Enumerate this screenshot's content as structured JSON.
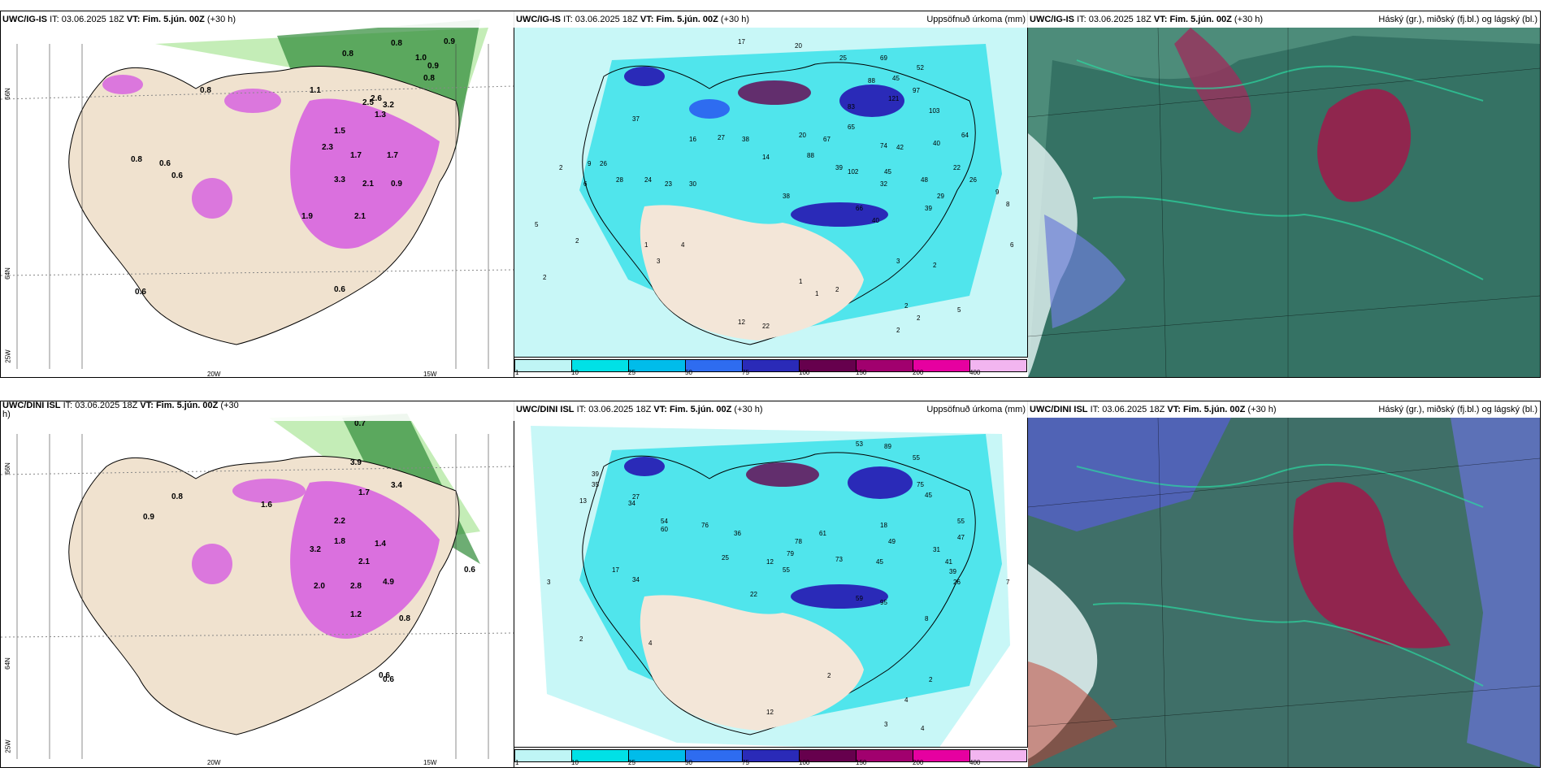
{
  "panels": [
    {
      "title_model": "UWC/IG-IS",
      "title_it_label": "IT:",
      "title_it": "03.06.2025 18Z",
      "title_vt_label": "VT:",
      "title_vt": "Fim. 5.jún. 00Z",
      "title_lead": "(+30 h)",
      "title_right": ""
    },
    {
      "title_model": "UWC/IG-IS",
      "title_it_label": "IT:",
      "title_it": "03.06.2025 18Z",
      "title_vt_label": "VT:",
      "title_vt": "Fim. 5.jún. 00Z",
      "title_lead": "(+30 h)",
      "title_right": "Uppsöfnuð úrkoma (mm)"
    },
    {
      "title_model": "UWC/IG-IS",
      "title_it_label": "IT:",
      "title_it": "03.06.2025 18Z",
      "title_vt_label": "VT:",
      "title_vt": "Fim. 5.jún. 00Z",
      "title_lead": "(+30 h)",
      "title_right": "Háský (gr.), miðský (fj.bl.) og lágský (bl.)"
    },
    {
      "title_model": "UWC/DINI ISL",
      "title_it_label": "IT:",
      "title_it": "03.06.2025 18Z",
      "title_vt_label": "VT:",
      "title_vt": "Fim. 5.jún. 00Z",
      "title_lead": "(+30",
      "title_lead2": "h)",
      "title_right": ""
    },
    {
      "title_model": "UWC/DINI ISL",
      "title_it_label": "IT:",
      "title_it": "03.06.2025 18Z",
      "title_vt_label": "VT:",
      "title_vt": "Fim. 5.jún. 00Z",
      "title_lead": "(+30 h)",
      "title_right": "Uppsöfnuð úrkoma (mm)"
    },
    {
      "title_model": "UWC/DINI ISL",
      "title_it_label": "IT:",
      "title_it": "03.06.2025 18Z",
      "title_vt_label": "VT:",
      "title_vt": "Fim. 5.jún. 00Z",
      "title_lead": "(+30 h)",
      "title_right": "Háský (gr.), miðský (fj.bl.) og lágský (bl.)"
    }
  ],
  "axis_labels": {
    "lat66": "66N",
    "lat64": "64N",
    "lon25": "25W",
    "lon20": "20W",
    "lon15": "15W",
    "lat66b": "66N",
    "lat64b": "64N"
  },
  "colorbar": {
    "labels": [
      "1",
      "10",
      "25",
      "50",
      "75",
      "100",
      "150",
      "200",
      "400"
    ],
    "colors": [
      "#bff5f5",
      "#00e1e6",
      "#00bcea",
      "#2e6cf0",
      "#2a2ab8",
      "#66004d",
      "#a1006e",
      "#e600a0",
      "#f2b5f0"
    ]
  },
  "wind_values_top": [
    "0.8",
    "0.8",
    "0.9",
    "0.8",
    "0.6",
    "0.8",
    "0.6",
    "0.6",
    "1.0",
    "0.9",
    "0.8",
    "1.1",
    "1.3",
    "1.7",
    "2.1",
    "3.3",
    "2.1",
    "0.9",
    "1.5",
    "2.6",
    "0.6",
    "1.9",
    "2.3",
    "1.7",
    "2.5",
    "3.2"
  ],
  "wind_values_bottom": [
    "0.7",
    "0.6",
    "0.6",
    "0.8",
    "0.8",
    "1.7",
    "2.2",
    "3.2",
    "2.0",
    "1.8",
    "1.4",
    "2.8",
    "4.9",
    "3.9",
    "3.4",
    "2.1",
    "1.6",
    "0.9",
    "0.6",
    "1.2"
  ],
  "precip_values_top": [
    "17",
    "20",
    "25",
    "69",
    "52",
    "45",
    "88",
    "121",
    "83",
    "97",
    "103",
    "37",
    "27",
    "38",
    "14",
    "20",
    "65",
    "67",
    "74",
    "42",
    "88",
    "40",
    "64",
    "39",
    "102",
    "45",
    "32",
    "22",
    "26",
    "28",
    "24",
    "23",
    "30",
    "38",
    "9",
    "2",
    "66",
    "40",
    "48",
    "29",
    "39",
    "26",
    "16",
    "5",
    "1",
    "2",
    "3",
    "4",
    "6",
    "2",
    "1",
    "1",
    "2",
    "9",
    "8",
    "6",
    "2",
    "2",
    "2",
    "2",
    "3",
    "5",
    "12",
    "22"
  ],
  "precip_values_bottom": [
    "53",
    "89",
    "55",
    "39",
    "35",
    "34",
    "27",
    "13",
    "54",
    "60",
    "45",
    "76",
    "25",
    "36",
    "12",
    "79",
    "61",
    "75",
    "18",
    "49",
    "55",
    "47",
    "31",
    "45",
    "41",
    "39",
    "26",
    "17",
    "34",
    "22",
    "55",
    "78",
    "73",
    "59",
    "95",
    "7",
    "8",
    "3",
    "2",
    "4",
    "2",
    "2",
    "4",
    "3",
    "4",
    "12"
  ]
}
